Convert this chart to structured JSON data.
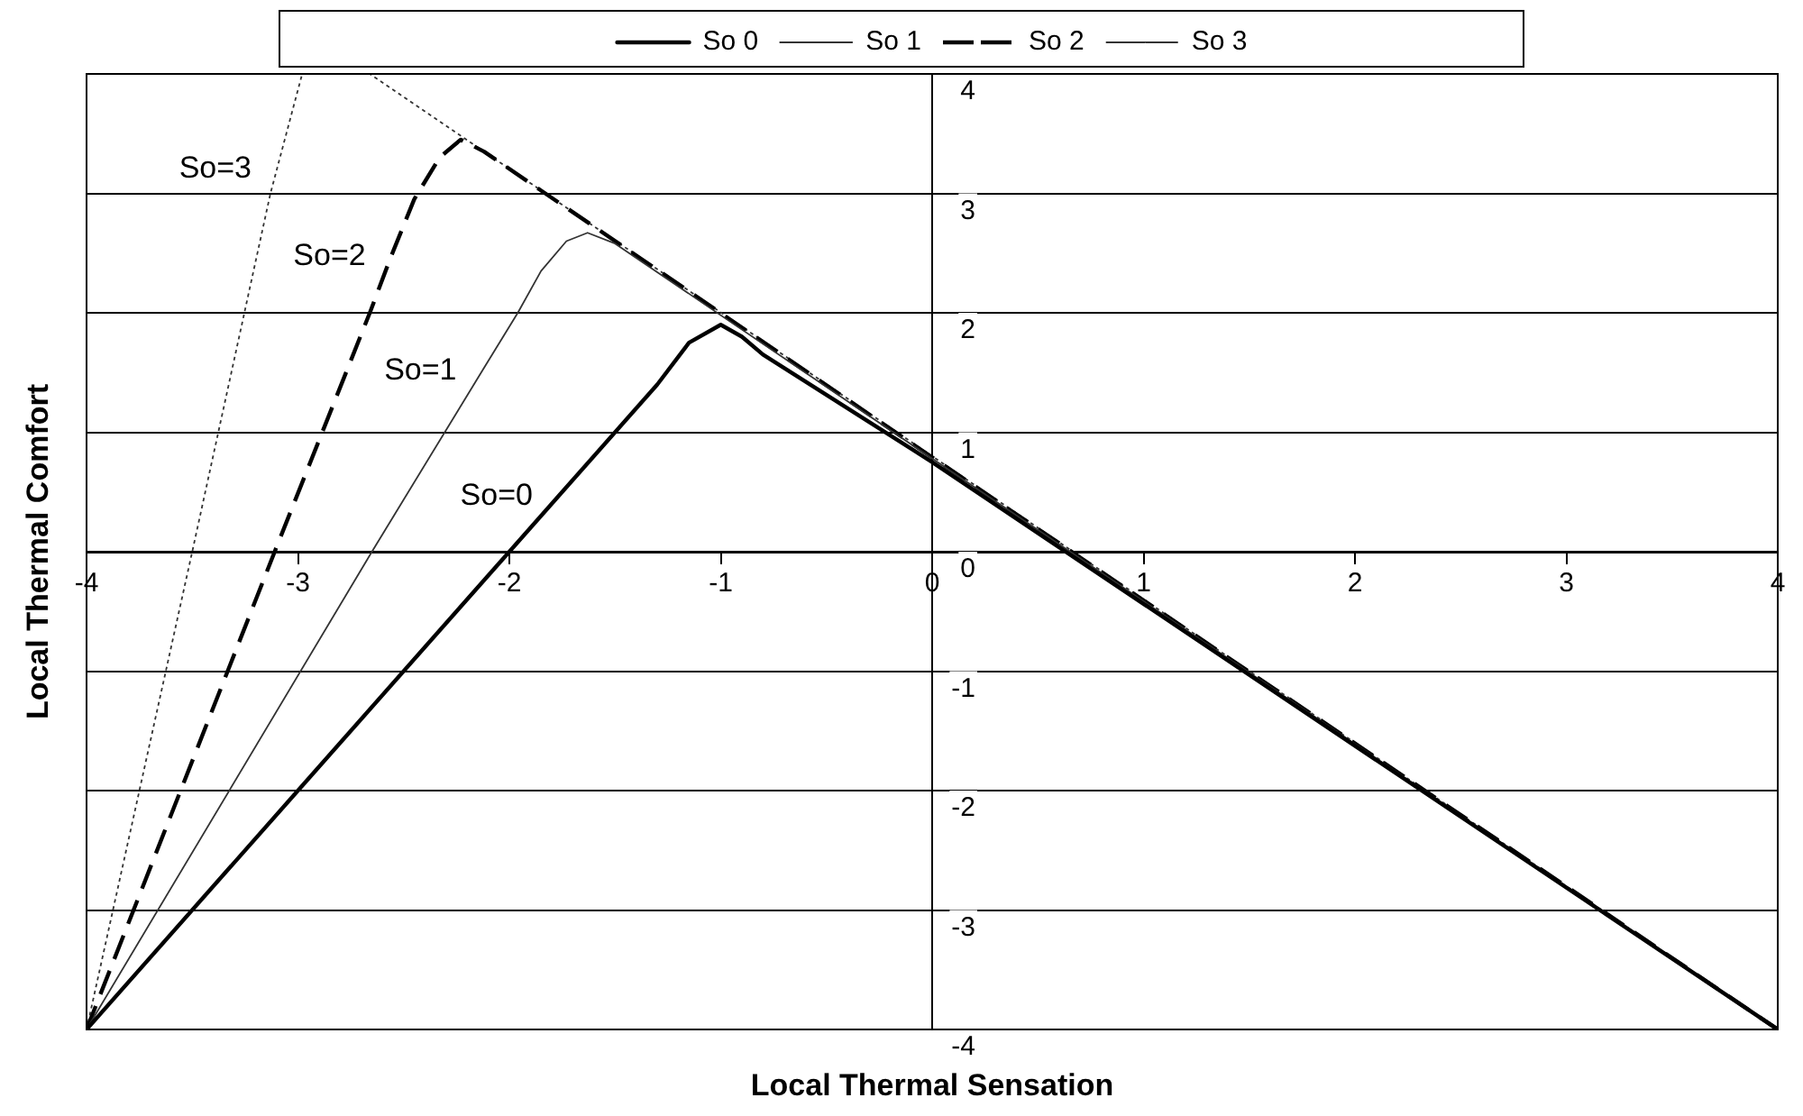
{
  "chart_data": {
    "type": "line",
    "xlabel": "Local Thermal Sensation",
    "ylabel": "Local Thermal Comfort",
    "xlim": [
      -4,
      4
    ],
    "ylim": [
      -4,
      4
    ],
    "xticks": [
      -4,
      -3,
      -2,
      -1,
      0,
      1,
      2,
      3,
      4
    ],
    "yticks": [
      -4,
      -3,
      -2,
      -1,
      0,
      1,
      2,
      3,
      4
    ],
    "grid": "y",
    "legend": "top",
    "marker": "none",
    "series": [
      {
        "name": "So 0",
        "color": "#000000",
        "line_style": "solid",
        "x": [
          -4,
          -3,
          -2,
          -1.77,
          -1.3,
          -1.15,
          -1.0,
          -0.9,
          -0.8,
          0,
          4
        ],
        "values": [
          -4,
          -2,
          0,
          0.46,
          1.4,
          1.75,
          1.9,
          1.8,
          1.65,
          0.75,
          -4
        ]
      },
      {
        "name": "So 1",
        "color": "#333333",
        "line_style": "solid",
        "x": [
          -4,
          -2.65,
          -2.13,
          -1.96,
          -1.85,
          -1.73,
          -1.63,
          -1.5,
          0,
          4
        ],
        "values": [
          -4,
          0,
          1.51,
          2,
          2.35,
          2.6,
          2.67,
          2.58,
          0.78,
          -4
        ]
      },
      {
        "name": "So 2",
        "color": "#000000",
        "line_style": "dashed",
        "x": [
          -4,
          -3.11,
          -2.66,
          -2.56,
          -2.45,
          -2.33,
          -2.23,
          -2.12,
          0,
          4
        ],
        "values": [
          -4,
          0,
          2,
          2.47,
          2.95,
          3.3,
          3.45,
          3.35,
          0.79,
          -4
        ]
      },
      {
        "name": "So 3",
        "color": "#333333",
        "line_style": "dotted",
        "x": [
          -4,
          -3.5,
          -3.13,
          -3.1,
          -2.98,
          -2.66,
          0,
          4
        ],
        "values": [
          -4,
          0,
          3,
          3.2,
          4,
          4,
          0.8,
          -4
        ]
      }
    ],
    "annotations": [
      {
        "text": "So=3",
        "x": -3.1,
        "y": 3.2
      },
      {
        "text": "So=2",
        "x": -2.56,
        "y": 2.47
      },
      {
        "text": "So=1",
        "x": -2.13,
        "y": 1.51
      },
      {
        "text": "So=0",
        "x": -1.77,
        "y": 0.46
      }
    ]
  }
}
